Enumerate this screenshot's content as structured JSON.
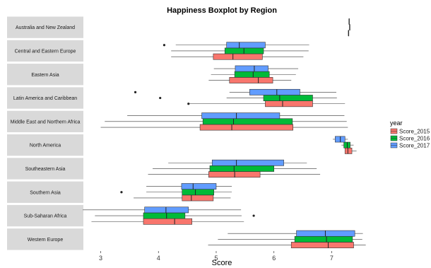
{
  "chart_data": {
    "type": "boxplot",
    "orientation": "horizontal",
    "title": "Happiness Boxplot by Region",
    "xlabel": "Score",
    "ylabel": "",
    "xlim": [
      2.7,
      7.9
    ],
    "xticks": [
      3,
      4,
      5,
      6,
      7
    ],
    "grid": false,
    "legend": {
      "title": "year",
      "position": "right"
    },
    "series": [
      {
        "name": "Score_2015",
        "color": "#F8766D"
      },
      {
        "name": "Score_2016",
        "color": "#00BA38"
      },
      {
        "name": "Score_2017",
        "color": "#619CFF"
      }
    ],
    "categories": [
      "Australia and New Zealand",
      "Central and Eastern Europe",
      "Eastern Asia",
      "Latin America and Caribbean",
      "Middle East and Northern Africa",
      "North America",
      "Southeastern Asia",
      "Southern Asia",
      "Sub-Saharan Africa",
      "Western Europe"
    ],
    "boxes": [
      [
        {
          "whislo": 7.29,
          "q1": 7.29,
          "med": 7.29,
          "q3": 7.29,
          "whishi": 7.29,
          "outliers": []
        },
        {
          "whislo": 7.31,
          "q1": 7.31,
          "med": 7.31,
          "q3": 7.31,
          "whishi": 7.31,
          "outliers": []
        },
        {
          "whislo": 7.3,
          "q1": 7.3,
          "med": 7.3,
          "q3": 7.3,
          "whishi": 7.3,
          "outliers": []
        }
      ],
      [
        {
          "whislo": 4.22,
          "q1": 4.95,
          "med": 5.29,
          "q3": 5.8,
          "whishi": 6.51,
          "outliers": []
        },
        {
          "whislo": 4.22,
          "q1": 5.15,
          "med": 5.48,
          "q3": 5.82,
          "whishi": 6.6,
          "outliers": []
        },
        {
          "whislo": 4.3,
          "q1": 5.18,
          "med": 5.4,
          "q3": 5.85,
          "whishi": 6.61,
          "outliers": [
            4.1
          ]
        }
      ],
      [
        {
          "whislo": 4.87,
          "q1": 5.23,
          "med": 5.73,
          "q3": 5.98,
          "whishi": 6.3,
          "outliers": []
        },
        {
          "whislo": 4.91,
          "q1": 5.32,
          "med": 5.64,
          "q3": 5.92,
          "whishi": 6.38,
          "outliers": []
        },
        {
          "whislo": 4.96,
          "q1": 5.33,
          "med": 5.66,
          "q3": 5.9,
          "whishi": 6.42,
          "outliers": []
        }
      ],
      [
        {
          "whislo": 4.52,
          "q1": 5.85,
          "med": 6.15,
          "q3": 6.67,
          "whishi": 7.23,
          "outliers": [
            4.52
          ]
        },
        {
          "whislo": 5.18,
          "q1": 5.82,
          "med": 6.1,
          "q3": 6.67,
          "whishi": 7.09,
          "outliers": [
            4.03
          ]
        },
        {
          "whislo": 5.23,
          "q1": 5.58,
          "med": 6.05,
          "q3": 6.45,
          "whishi": 7.08,
          "outliers": [
            3.6
          ]
        }
      ],
      [
        {
          "whislo": 3.0,
          "q1": 4.72,
          "med": 5.27,
          "q3": 6.33,
          "whishi": 7.28,
          "outliers": []
        },
        {
          "whislo": 3.07,
          "q1": 4.77,
          "med": 5.3,
          "q3": 6.32,
          "whishi": 7.26,
          "outliers": []
        },
        {
          "whislo": 3.46,
          "q1": 4.75,
          "med": 5.35,
          "q3": 6.1,
          "whishi": 7.22,
          "outliers": []
        }
      ],
      [
        {
          "whislo": 7.23,
          "q1": 7.23,
          "med": 7.28,
          "q3": 7.35,
          "whishi": 7.43,
          "outliers": []
        },
        {
          "whislo": 7.17,
          "q1": 7.21,
          "med": 7.27,
          "q3": 7.32,
          "whishi": 7.38,
          "outliers": []
        },
        {
          "whislo": 7.02,
          "q1": 7.06,
          "med": 7.15,
          "q3": 7.23,
          "whishi": 7.28,
          "outliers": []
        }
      ],
      [
        {
          "whislo": 3.82,
          "q1": 4.87,
          "med": 5.32,
          "q3": 5.76,
          "whishi": 6.8,
          "outliers": []
        },
        {
          "whislo": 3.9,
          "q1": 4.89,
          "med": 5.31,
          "q3": 6.0,
          "whishi": 6.74,
          "outliers": []
        },
        {
          "whislo": 4.17,
          "q1": 4.93,
          "med": 5.35,
          "q3": 6.17,
          "whishi": 6.57,
          "outliers": []
        }
      ],
      [
        {
          "whislo": 3.57,
          "q1": 4.41,
          "med": 4.57,
          "q3": 4.95,
          "whishi": 5.25,
          "outliers": []
        },
        {
          "whislo": 3.79,
          "q1": 4.41,
          "med": 4.64,
          "q3": 4.96,
          "whishi": 5.27,
          "outliers": [
            3.36
          ]
        },
        {
          "whislo": 3.79,
          "q1": 4.4,
          "med": 4.6,
          "q3": 5.0,
          "whishi": 5.27,
          "outliers": []
        }
      ],
      [
        {
          "whislo": 2.84,
          "q1": 3.74,
          "med": 4.28,
          "q3": 4.58,
          "whishi": 5.48,
          "outliers": []
        },
        {
          "whislo": 2.9,
          "q1": 3.74,
          "med": 4.14,
          "q3": 4.46,
          "whishi": 5.44,
          "outliers": [
            5.65
          ]
        },
        {
          "whislo": 2.69,
          "q1": 3.76,
          "med": 4.13,
          "q3": 4.52,
          "whishi": 5.43,
          "outliers": []
        }
      ],
      [
        {
          "whislo": 4.86,
          "q1": 6.3,
          "med": 6.94,
          "q3": 7.38,
          "whishi": 7.59,
          "outliers": []
        },
        {
          "whislo": 5.03,
          "q1": 6.36,
          "med": 6.91,
          "q3": 7.36,
          "whishi": 7.53,
          "outliers": []
        },
        {
          "whislo": 5.2,
          "q1": 6.39,
          "med": 6.89,
          "q3": 7.4,
          "whishi": 7.54,
          "outliers": []
        }
      ]
    ]
  }
}
